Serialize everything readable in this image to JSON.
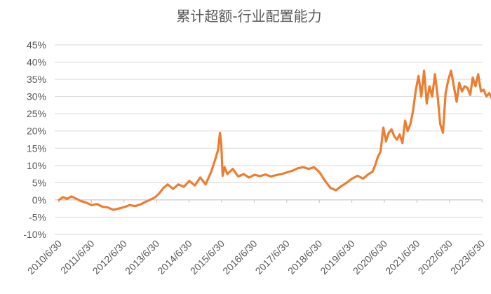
{
  "chart_data": {
    "type": "line",
    "title": "累计超额-行业配置能力",
    "xlabel": "",
    "ylabel": "",
    "ylim": [
      -10,
      45
    ],
    "y_ticks": [
      -10,
      -5,
      0,
      5,
      10,
      15,
      20,
      25,
      30,
      35,
      40,
      45
    ],
    "y_tick_labels": [
      "-10%",
      "-5%",
      "0%",
      "5%",
      "10%",
      "15%",
      "20%",
      "25%",
      "30%",
      "35%",
      "40%",
      "45%"
    ],
    "x_ticks": [
      "2010/6/30",
      "2011/6/30",
      "2012/6/30",
      "2013/6/30",
      "2014/6/30",
      "2015/6/30",
      "2016/6/30",
      "2017/6/30",
      "2018/6/30",
      "2019/6/30",
      "2020/6/30",
      "2021/6/30",
      "2022/6/30",
      "2023/6/30"
    ],
    "xlim": [
      "2010/6/30",
      "2024/1/15"
    ],
    "grid": "horizontal",
    "legend": "none",
    "color": "#ed7d31",
    "series": [
      {
        "x": [
          "2010/6/30",
          "2010/8/15",
          "2010/10/1",
          "2010/11/15",
          "2011/1/1",
          "2011/3/1",
          "2011/5/1",
          "2011/7/1",
          "2011/9/1",
          "2011/11/1",
          "2012/1/1",
          "2012/3/1",
          "2012/5/1",
          "2012/7/1",
          "2012/9/1",
          "2012/11/1",
          "2013/1/1",
          "2013/3/1",
          "2013/5/1",
          "2013/6/15",
          "2013/8/1",
          "2013/9/15",
          "2013/11/1",
          "2014/1/1",
          "2014/3/1",
          "2014/5/1",
          "2014/7/1",
          "2014/9/1",
          "2014/11/1",
          "2015/1/1",
          "2015/3/1",
          "2015/4/15",
          "2015/5/20",
          "2015/6/10",
          "2015/6/25",
          "2015/7/10",
          "2015/8/1",
          "2015/9/1",
          "2015/11/1",
          "2016/1/1",
          "2016/3/1",
          "2016/5/1",
          "2016/7/1",
          "2016/9/1",
          "2016/11/1",
          "2017/1/1",
          "2017/3/1",
          "2017/5/1",
          "2017/7/1",
          "2017/9/1",
          "2017/11/1",
          "2018/1/1",
          "2018/3/1",
          "2018/5/1",
          "2018/7/1",
          "2018/9/1",
          "2018/11/1",
          "2019/1/1",
          "2019/3/1",
          "2019/5/1",
          "2019/7/1",
          "2019/9/1",
          "2019/11/1",
          "2020/1/1",
          "2020/2/15",
          "2020/3/15",
          "2020/4/15",
          "2020/5/15",
          "2020/6/15",
          "2020/7/15",
          "2020/8/15",
          "2020/9/15",
          "2020/10/15",
          "2020/11/15",
          "2020/12/15",
          "2021/1/15",
          "2021/2/15",
          "2021/3/15",
          "2021/4/15",
          "2021/5/15",
          "2021/6/15",
          "2021/7/15",
          "2021/8/15",
          "2021/9/15",
          "2021/10/15",
          "2021/11/15",
          "2021/12/15",
          "2022/1/15",
          "2022/2/15",
          "2022/3/15",
          "2022/4/15",
          "2022/5/15",
          "2022/6/15",
          "2022/7/15",
          "2022/8/15",
          "2022/9/15",
          "2022/10/15",
          "2022/11/15",
          "2022/12/15",
          "2023/1/15",
          "2023/2/15",
          "2023/3/15",
          "2023/4/15",
          "2023/5/15",
          "2023/6/15",
          "2023/7/15",
          "2023/8/15",
          "2023/9/15",
          "2023/10/15",
          "2023/11/15",
          "2023/12/15",
          "2024/1/15"
        ],
        "values": [
          0,
          0.8,
          0.3,
          1.0,
          0.5,
          -0.3,
          -0.8,
          -1.5,
          -1.2,
          -2.0,
          -2.2,
          -2.9,
          -2.5,
          -2.1,
          -1.5,
          -1.8,
          -1.3,
          -0.5,
          0.2,
          0.8,
          2.0,
          3.5,
          4.5,
          3.2,
          4.5,
          3.8,
          5.5,
          4.2,
          6.5,
          4.5,
          8.0,
          11.5,
          14.5,
          19.5,
          16.0,
          7.0,
          9.5,
          7.5,
          9.0,
          6.8,
          7.5,
          6.5,
          7.3,
          6.9,
          7.4,
          6.8,
          7.2,
          7.5,
          8.0,
          8.5,
          9.2,
          9.5,
          9.0,
          9.5,
          8.0,
          5.5,
          3.5,
          2.8,
          4.0,
          5.0,
          6.2,
          7.0,
          6.2,
          7.5,
          8.2,
          10.0,
          12.5,
          14.0,
          21.0,
          17.0,
          19.5,
          20.5,
          18.5,
          17.5,
          19.0,
          16.5,
          23.0,
          20.0,
          22.0,
          26.0,
          32.0,
          36.0,
          30.0,
          37.5,
          28.0,
          33.0,
          30.0,
          36.5,
          30.0,
          22.0,
          19.5,
          31.0,
          35.0,
          37.5,
          33.0,
          28.5,
          34.0,
          31.5,
          33.0,
          32.5,
          30.5,
          35.5,
          33.0,
          36.5,
          31.5,
          32.0,
          30.0,
          31.0,
          29.5,
          30.5,
          29.0,
          28.0
        ]
      }
    ]
  }
}
